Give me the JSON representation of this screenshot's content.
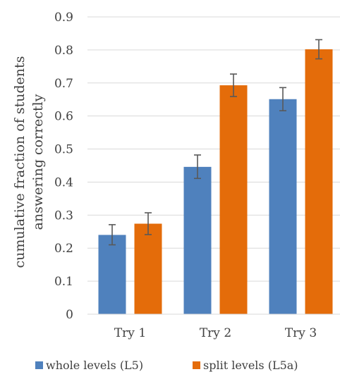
{
  "chart_data": {
    "type": "bar",
    "title": "",
    "xlabel": "",
    "ylabel_lines": [
      "cumulative fraction of students",
      "answering correctly"
    ],
    "categories": [
      "Try 1",
      "Try 2",
      "Try 3"
    ],
    "series": [
      {
        "name": "whole levels (L5)",
        "color": "#4F81BD",
        "values": [
          0.24,
          0.446,
          0.651
        ],
        "error_low": [
          0.21,
          0.411,
          0.616
        ],
        "error_high": [
          0.271,
          0.482,
          0.686
        ]
      },
      {
        "name": "split levels (L5a)",
        "color": "#E46C0A",
        "values": [
          0.274,
          0.693,
          0.802
        ],
        "error_low": [
          0.241,
          0.659,
          0.773
        ],
        "error_high": [
          0.307,
          0.727,
          0.831
        ]
      }
    ],
    "ylim": [
      0,
      0.9
    ],
    "yticks": [
      "0",
      "0.1",
      "0.2",
      "0.3",
      "0.4",
      "0.5",
      "0.6",
      "0.7",
      "0.8",
      "0.9"
    ],
    "grid": true,
    "legend_position": "bottom"
  }
}
